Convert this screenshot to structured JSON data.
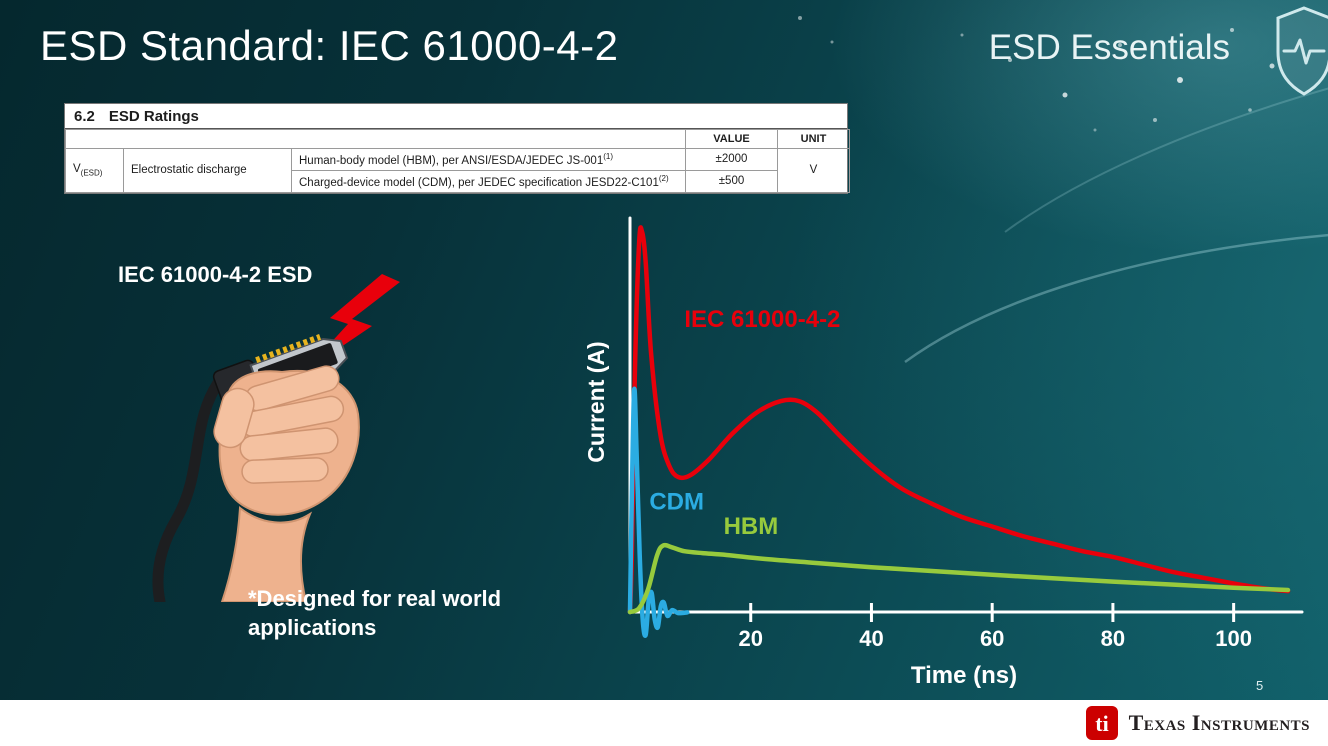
{
  "slide": {
    "title": "ESD Standard: IEC 61000-4-2",
    "brand": "ESD Essentials",
    "page_number": "5"
  },
  "ratings_table": {
    "section_number": "6.2",
    "section_title": "ESD Ratings",
    "columns": {
      "value": "VALUE",
      "unit": "UNIT"
    },
    "symbol_base": "V",
    "symbol_sub": "(ESD)",
    "parameter": "Electrostatic discharge",
    "rows": [
      {
        "model": "Human-body model (HBM), per ANSI/ESDA/JEDEC JS-001",
        "sup": "(1)",
        "value": "±2000"
      },
      {
        "model": "Charged-device model (CDM), per JEDEC specification JESD22-C101",
        "sup": "(2)",
        "value": "±500"
      }
    ],
    "unit": "V"
  },
  "illustration": {
    "caption": "IEC 61000-4-2 ESD",
    "footnote": "*Designed for real world\napplications"
  },
  "chart_data": {
    "type": "line",
    "title": "",
    "xlabel": "Time (ns)",
    "ylabel": "Current (A)",
    "xlim": [
      0,
      110
    ],
    "ylim": [
      -0.08,
      1.05
    ],
    "x_ticks": [
      20,
      40,
      60,
      80,
      100
    ],
    "grid": false,
    "legend": "inline-labels",
    "series": [
      {
        "name": "IEC 61000-4-2",
        "color": "#e8000b",
        "points": [
          [
            0,
            0
          ],
          [
            0.3,
            0.15
          ],
          [
            0.8,
            0.62
          ],
          [
            1.5,
            0.97
          ],
          [
            2.0,
            1.0
          ],
          [
            2.6,
            0.92
          ],
          [
            3.5,
            0.68
          ],
          [
            5,
            0.47
          ],
          [
            6.5,
            0.385
          ],
          [
            8,
            0.355
          ],
          [
            10,
            0.36
          ],
          [
            13,
            0.4
          ],
          [
            17,
            0.47
          ],
          [
            21,
            0.525
          ],
          [
            25,
            0.555
          ],
          [
            28,
            0.555
          ],
          [
            31,
            0.525
          ],
          [
            35,
            0.46
          ],
          [
            40,
            0.385
          ],
          [
            45,
            0.325
          ],
          [
            50,
            0.285
          ],
          [
            55,
            0.25
          ],
          [
            60,
            0.225
          ],
          [
            65,
            0.2
          ],
          [
            70,
            0.18
          ],
          [
            75,
            0.16
          ],
          [
            80,
            0.145
          ],
          [
            85,
            0.125
          ],
          [
            90,
            0.105
          ],
          [
            95,
            0.09
          ],
          [
            100,
            0.075
          ],
          [
            105,
            0.062
          ],
          [
            109,
            0.055
          ]
        ]
      },
      {
        "name": "CDM",
        "color": "#2bace2",
        "points": [
          [
            0,
            0
          ],
          [
            0.3,
            0.3
          ],
          [
            0.7,
            0.585
          ],
          [
            1.1,
            0.42
          ],
          [
            1.6,
            0.15
          ],
          [
            2.1,
            -0.02
          ],
          [
            2.6,
            -0.06
          ],
          [
            3.1,
            0.03
          ],
          [
            3.6,
            0.05
          ],
          [
            4.1,
            -0.02
          ],
          [
            4.6,
            -0.04
          ],
          [
            5.1,
            0.015
          ],
          [
            5.6,
            0.025
          ],
          [
            6.2,
            -0.01
          ],
          [
            7,
            0.005
          ],
          [
            8,
            -0.003
          ],
          [
            9.5,
            -0.001
          ]
        ]
      },
      {
        "name": "HBM",
        "color": "#97ca3d",
        "points": [
          [
            0,
            0
          ],
          [
            1.5,
            0.01
          ],
          [
            3,
            0.06
          ],
          [
            4.5,
            0.15
          ],
          [
            5.5,
            0.175
          ],
          [
            7,
            0.17
          ],
          [
            9,
            0.16
          ],
          [
            12,
            0.155
          ],
          [
            16,
            0.15
          ],
          [
            22,
            0.14
          ],
          [
            30,
            0.13
          ],
          [
            40,
            0.118
          ],
          [
            50,
            0.108
          ],
          [
            60,
            0.098
          ],
          [
            70,
            0.089
          ],
          [
            80,
            0.08
          ],
          [
            90,
            0.072
          ],
          [
            100,
            0.064
          ],
          [
            109,
            0.058
          ]
        ]
      }
    ],
    "annotations": [
      {
        "text": "IEC 61000-4-2",
        "color": "#e8000b",
        "x": 9,
        "y": 0.75
      },
      {
        "text": "CDM",
        "color": "#2bace2",
        "x": 3.2,
        "y": 0.27
      },
      {
        "text": "HBM",
        "color": "#97ca3d",
        "x": 15.5,
        "y": 0.205
      }
    ]
  },
  "footer": {
    "bug_text": "ti",
    "wordmark": "Texas Instruments"
  },
  "colors": {
    "background_dark": "#05282e",
    "background_light": "#11616b",
    "accent_red": "#e8000b",
    "accent_cyan": "#2bace2",
    "accent_green": "#97ca3d",
    "ti_red": "#cc0000"
  }
}
